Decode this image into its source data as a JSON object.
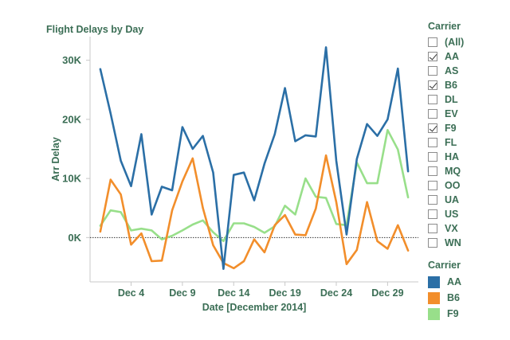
{
  "chart_title": "Flight Delays by Day",
  "filter": {
    "title": "Carrier",
    "items": [
      {
        "label": "(All)",
        "checked": false
      },
      {
        "label": "AA",
        "checked": true
      },
      {
        "label": "AS",
        "checked": false
      },
      {
        "label": "B6",
        "checked": true
      },
      {
        "label": "DL",
        "checked": false
      },
      {
        "label": "EV",
        "checked": false
      },
      {
        "label": "F9",
        "checked": true
      },
      {
        "label": "FL",
        "checked": false
      },
      {
        "label": "HA",
        "checked": false
      },
      {
        "label": "MQ",
        "checked": false
      },
      {
        "label": "OO",
        "checked": false
      },
      {
        "label": "UA",
        "checked": false
      },
      {
        "label": "US",
        "checked": false
      },
      {
        "label": "VX",
        "checked": false
      },
      {
        "label": "WN",
        "checked": false
      }
    ]
  },
  "legend": {
    "title": "Carrier",
    "items": [
      {
        "label": "AA",
        "color": "#2b6fa6"
      },
      {
        "label": "B6",
        "color": "#f28e2b"
      },
      {
        "label": "F9",
        "color": "#98df8a"
      }
    ]
  },
  "chart_data": {
    "type": "line",
    "title": "Flight Delays by Day",
    "xlabel": "Date [December 2014]",
    "ylabel": "Arr Delay",
    "x": [
      1,
      2,
      3,
      4,
      5,
      6,
      7,
      8,
      9,
      10,
      11,
      12,
      13,
      14,
      15,
      16,
      17,
      18,
      19,
      20,
      21,
      22,
      23,
      24,
      25,
      26,
      27,
      28,
      29,
      30,
      31
    ],
    "x_ticks": [
      4,
      9,
      14,
      19,
      24,
      29
    ],
    "x_tick_labels": [
      "Dec 4",
      "Dec 9",
      "Dec 14",
      "Dec 19",
      "Dec 24",
      "Dec 29"
    ],
    "xlim": [
      0,
      32
    ],
    "ylim": [
      -7500,
      34000
    ],
    "y_ticks": [
      0,
      10000,
      20000,
      30000
    ],
    "y_tick_labels": [
      "0K",
      "10K",
      "20K",
      "30K"
    ],
    "zero_line": "dotted",
    "grid": false,
    "series": [
      {
        "name": "AA",
        "color": "#2b6fa6",
        "values": [
          28500,
          21000,
          13000,
          8700,
          17500,
          3900,
          8600,
          8000,
          18700,
          15000,
          17200,
          11000,
          -5300,
          10600,
          11000,
          6300,
          12500,
          17500,
          25300,
          16300,
          17300,
          17100,
          32200,
          13000,
          500,
          13300,
          19200,
          17200,
          20000,
          28600,
          11200
        ]
      },
      {
        "name": "B6",
        "color": "#f28e2b",
        "values": [
          1000,
          9800,
          7300,
          -1200,
          700,
          -4000,
          -3900,
          4600,
          9500,
          13400,
          5000,
          -1300,
          -4300,
          -5200,
          -4000,
          -300,
          -2500,
          2100,
          3800,
          500,
          400,
          4900,
          13900,
          6000,
          -4500,
          -2100,
          6000,
          -600,
          -1900,
          2100,
          -2200
        ]
      },
      {
        "name": "F9",
        "color": "#98df8a",
        "values": [
          2000,
          4600,
          4300,
          1200,
          1500,
          1200,
          -300,
          300,
          1200,
          2200,
          2900,
          900,
          -600,
          2400,
          2400,
          1800,
          800,
          1900,
          5400,
          3900,
          10000,
          6900,
          6700,
          2300,
          2100,
          12700,
          9200,
          9200,
          18200,
          14900,
          6800
        ]
      }
    ]
  }
}
